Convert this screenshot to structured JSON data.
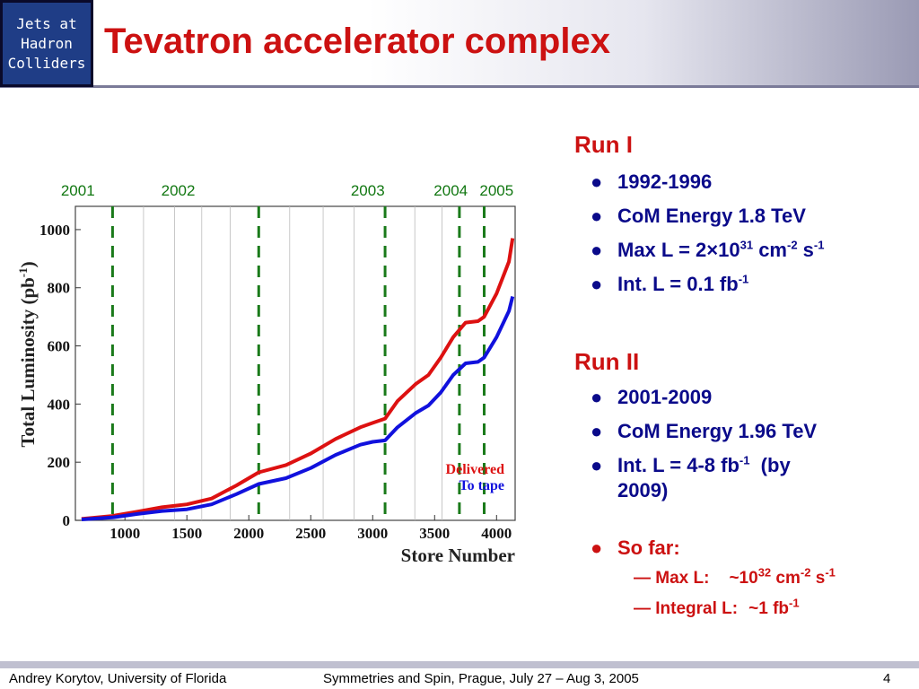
{
  "header": {
    "logo_text": "Jets at\nHadron\nColliders",
    "title": "Tevatron accelerator complex"
  },
  "chart_data": {
    "type": "line",
    "xlabel": "Store Number",
    "ylabel": "Total Luminosity (pb",
    "ylabel_sup": "-1",
    "ylabel_close": ")",
    "xlim": [
      600,
      4150
    ],
    "ylim": [
      0,
      1080
    ],
    "xticks": [
      1000,
      1500,
      2000,
      2500,
      3000,
      3500,
      4000
    ],
    "yticks": [
      0,
      200,
      400,
      600,
      800,
      1000
    ],
    "year_markers": [
      {
        "label": "2001",
        "x": 900
      },
      {
        "label": "2002",
        "x": 2080
      },
      {
        "label": "2003",
        "x": 3100
      },
      {
        "label": "2004",
        "x": 3700
      },
      {
        "label": "2005",
        "x": 3900
      }
    ],
    "year_label_positions": [
      {
        "label": "2001",
        "x": 620
      },
      {
        "label": "2002",
        "x": 1430
      },
      {
        "label": "2003",
        "x": 2960
      },
      {
        "label": "2004",
        "x": 3630
      },
      {
        "label": "2005",
        "x": 4000
      }
    ],
    "minor_grid_x": [
      1150,
      1400,
      1620,
      1850,
      2330,
      2600,
      2850,
      3340,
      3560
    ],
    "series": [
      {
        "name": "Delivered",
        "color": "#dd1111",
        "x": [
          650,
          900,
          1100,
          1300,
          1500,
          1700,
          1900,
          2080,
          2300,
          2500,
          2700,
          2900,
          3000,
          3100,
          3200,
          3350,
          3450,
          3550,
          3650,
          3750,
          3850,
          3900,
          4000,
          4100,
          4130
        ],
        "y": [
          5,
          15,
          30,
          45,
          55,
          75,
          120,
          165,
          190,
          230,
          280,
          320,
          335,
          350,
          410,
          470,
          500,
          560,
          630,
          680,
          685,
          700,
          780,
          890,
          970
        ]
      },
      {
        "name": "To tape",
        "color": "#1111dd",
        "x": [
          650,
          900,
          1100,
          1300,
          1500,
          1700,
          1900,
          2080,
          2300,
          2500,
          2700,
          2900,
          3000,
          3100,
          3200,
          3350,
          3450,
          3550,
          3650,
          3750,
          3850,
          3900,
          4000,
          4100,
          4130
        ],
        "y": [
          3,
          10,
          22,
          32,
          38,
          55,
          90,
          125,
          145,
          180,
          225,
          260,
          270,
          275,
          320,
          370,
          395,
          440,
          500,
          540,
          545,
          560,
          630,
          720,
          770
        ]
      }
    ]
  },
  "panel": {
    "run1": {
      "heading": "Run I",
      "years": "1992-1996",
      "energy": "CoM Energy 1.8 TeV",
      "maxl_prefix": "Max L = 2",
      "maxl_times": "×",
      "maxl_base": "10",
      "maxl_exp": "31",
      "maxl_cm": " cm",
      "maxl_cm_exp": "-2",
      "maxl_s": " s",
      "maxl_s_exp": "-1",
      "intl_prefix": "Int. L = 0.1 fb",
      "intl_exp": "-1"
    },
    "run2": {
      "heading": "Run II",
      "years": "2001-2009",
      "energy": "CoM Energy 1.96 TeV",
      "intl_prefix": "Int. L = 4-8 fb",
      "intl_exp": "-1",
      "intl_suffix": "  (by",
      "intl_line2": "2009)"
    },
    "so_far": {
      "label": "So far:",
      "maxl_label": "— Max L:",
      "maxl_prefix": "~10",
      "maxl_exp": "32",
      "maxl_cm": " cm",
      "maxl_cm_exp": "-2",
      "maxl_s": " s",
      "maxl_s_exp": "-1",
      "intl_label": "— Integral L:",
      "intl_value": "~1 fb",
      "intl_exp": "-1"
    },
    "bullet_glyph": "●"
  },
  "footer": {
    "author": "Andrey Korytov, University of Florida",
    "conference": "Symmetries and Spin, Prague, July 27 – Aug 3, 2005",
    "page": "4"
  },
  "colors": {
    "title_red": "#cc1111",
    "text_blue": "#0a0a8a",
    "logo_bg": "#1f3d86",
    "marker_green": "#1a7a1a"
  }
}
